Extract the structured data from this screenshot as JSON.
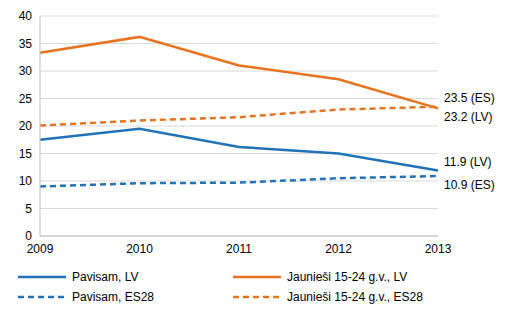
{
  "chart_data": {
    "type": "line",
    "categories": [
      "2009",
      "2010",
      "2011",
      "2012",
      "2013"
    ],
    "series": [
      {
        "name": "Pavisam, LV",
        "color": "#2272b8",
        "line_style": "solid",
        "values": [
          17.5,
          19.5,
          16.2,
          15.0,
          11.9
        ]
      },
      {
        "name": "Jaunieši 15-24 g.v., LV",
        "color": "#e8731e",
        "line_style": "solid",
        "values": [
          33.3,
          36.2,
          31.0,
          28.5,
          23.2
        ]
      },
      {
        "name": "Pavisam, ES28",
        "color": "#2272b8",
        "line_style": "dashed",
        "values": [
          9.0,
          9.6,
          9.7,
          10.5,
          10.9
        ]
      },
      {
        "name": "Jaunieši 15-24 g.v., ES28",
        "color": "#e8731e",
        "line_style": "dashed",
        "values": [
          20.1,
          21.0,
          21.6,
          23.0,
          23.5
        ]
      }
    ],
    "annotations": [
      {
        "text": "23.5 (ES)",
        "series": "Jaunieši 15-24 g.v., ES28"
      },
      {
        "text": "23.2 (LV)",
        "series": "Jaunieši 15-24 g.v., LV"
      },
      {
        "text": "11.9 (LV)",
        "series": "Pavisam, LV"
      },
      {
        "text": "10.9 (ES)",
        "series": "Pavisam, ES28"
      }
    ],
    "ylim": [
      0,
      40
    ],
    "yticks": [
      0,
      5,
      10,
      15,
      20,
      25,
      30,
      35,
      40
    ],
    "grid": true,
    "legend": "bottom"
  }
}
